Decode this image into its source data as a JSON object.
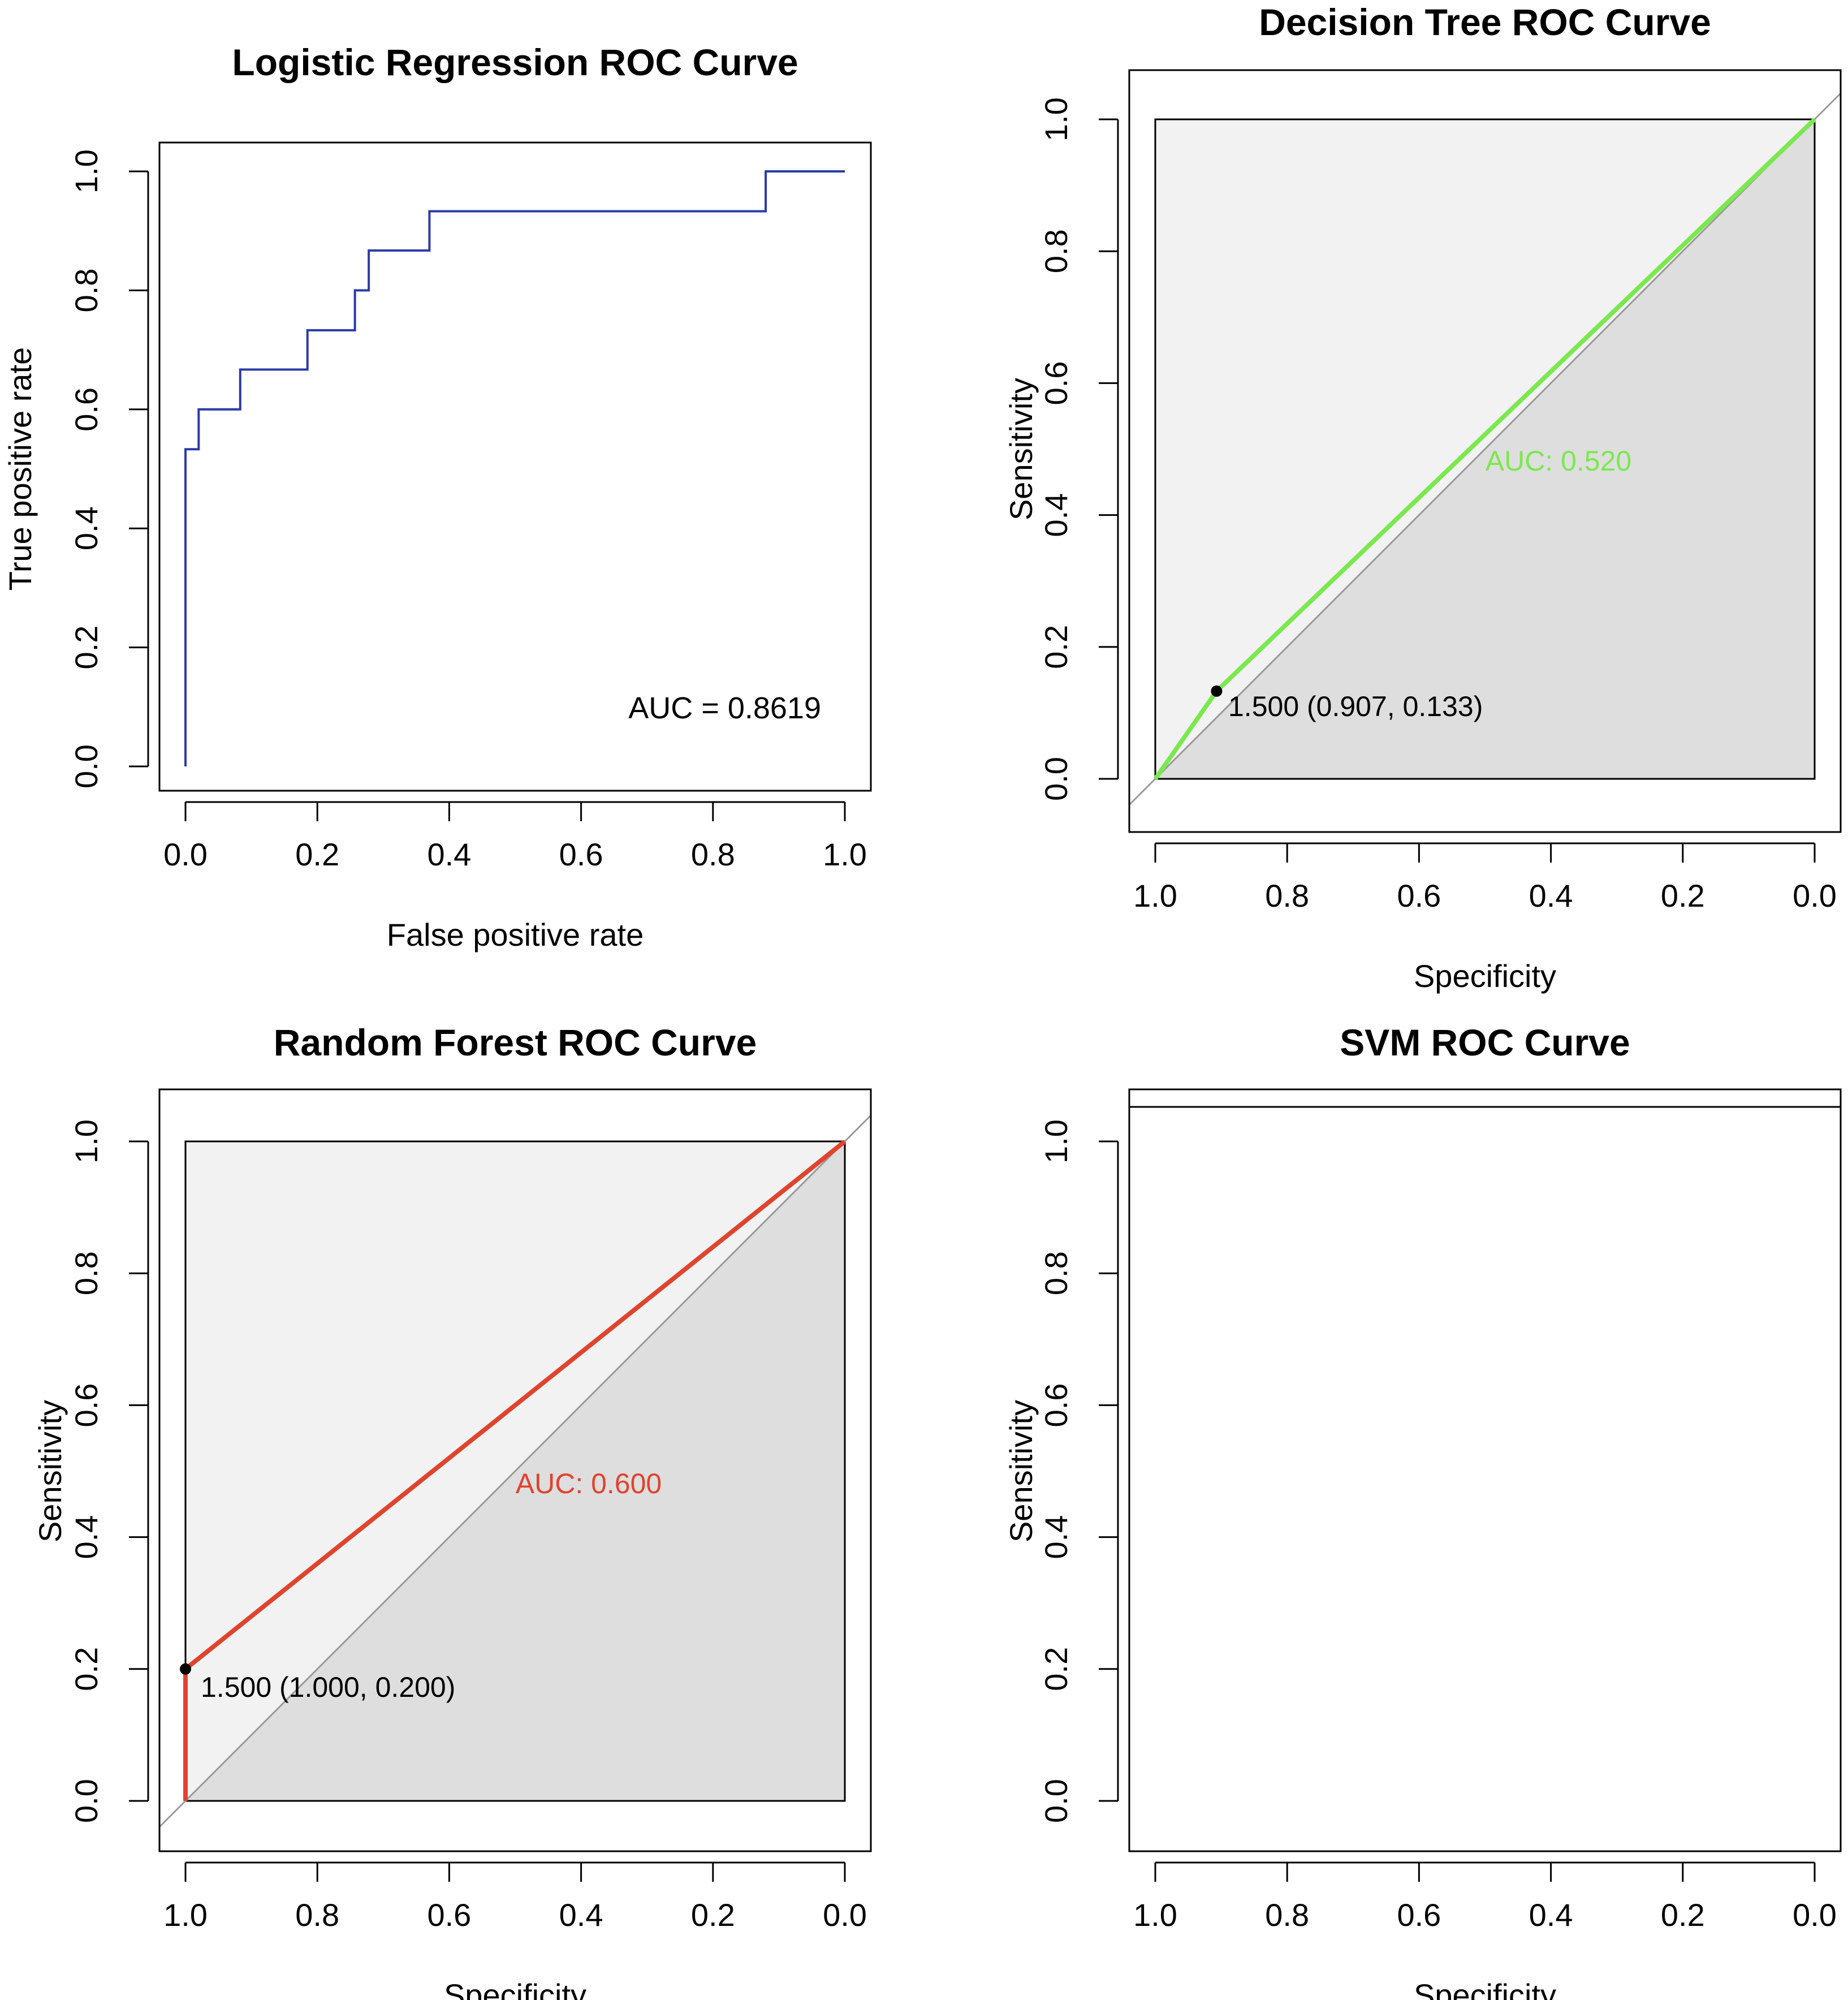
{
  "colors": {
    "logistic_curve": "#2b3aa8",
    "decision_tree_curve": "#7be84f",
    "random_forest_curve": "#e0432e",
    "frame": "#000000",
    "diagonal": "#9a9a9a",
    "shade_upper": "#f2f2f2",
    "shade_lower": "#dedede",
    "threshold_point": "#000000"
  },
  "chart_data": [
    {
      "id": "logistic",
      "type": "line",
      "title": "Logistic Regression ROC Curve",
      "xlabel": "False positive rate",
      "ylabel": "True positive rate",
      "xlim": [
        0,
        1
      ],
      "ylim": [
        0,
        1
      ],
      "x_ticks": [
        "0.0",
        "0.2",
        "0.4",
        "0.6",
        "0.8",
        "1.0"
      ],
      "y_ticks": [
        "0.0",
        "0.2",
        "0.4",
        "0.6",
        "0.8",
        "1.0"
      ],
      "auc_label": "AUC = 0.8619",
      "series": [
        {
          "name": "Logistic Regression",
          "x": [
            0,
            0,
            0.02,
            0.02,
            0.083,
            0.083,
            0.185,
            0.185,
            0.257,
            0.257,
            0.278,
            0.278,
            0.37,
            0.37,
            0.88,
            0.88,
            1.0
          ],
          "y": [
            0,
            0.533,
            0.533,
            0.6,
            0.6,
            0.667,
            0.667,
            0.733,
            0.733,
            0.8,
            0.8,
            0.867,
            0.867,
            0.933,
            0.933,
            1.0,
            1.0
          ]
        }
      ]
    },
    {
      "id": "decision_tree",
      "type": "line",
      "title": "Decision Tree ROC Curve",
      "xlabel": "Specificity",
      "ylabel": "Sensitivity",
      "xlim": [
        1,
        0
      ],
      "ylim": [
        0,
        1
      ],
      "x_ticks": [
        "1.0",
        "0.8",
        "0.6",
        "0.4",
        "0.2",
        "0.0"
      ],
      "y_ticks": [
        "0.0",
        "0.2",
        "0.4",
        "0.6",
        "0.8",
        "1.0"
      ],
      "auc_label": "AUC: 0.520",
      "threshold_label": "1.500 (0.907, 0.133)",
      "threshold_point": {
        "specificity": 0.907,
        "sensitivity": 0.133
      },
      "series": [
        {
          "name": "Decision Tree",
          "specificity": [
            1.0,
            0.907,
            0.0
          ],
          "sensitivity": [
            0.0,
            0.133,
            1.0
          ]
        }
      ]
    },
    {
      "id": "random_forest",
      "type": "line",
      "title": "Random Forest ROC Curve",
      "xlabel": "Specificity",
      "ylabel": "Sensitivity",
      "xlim": [
        1,
        0
      ],
      "ylim": [
        0,
        1
      ],
      "x_ticks": [
        "1.0",
        "0.8",
        "0.6",
        "0.4",
        "0.2",
        "0.0"
      ],
      "y_ticks": [
        "0.0",
        "0.2",
        "0.4",
        "0.6",
        "0.8",
        "1.0"
      ],
      "auc_label": "AUC: 0.600",
      "threshold_label": "1.500 (1.000, 0.200)",
      "threshold_point": {
        "specificity": 1.0,
        "sensitivity": 0.2
      },
      "series": [
        {
          "name": "Random Forest",
          "specificity": [
            1.0,
            1.0,
            0.0
          ],
          "sensitivity": [
            0.0,
            0.2,
            1.0
          ]
        }
      ]
    },
    {
      "id": "svm",
      "type": "line",
      "title": "SVM ROC Curve",
      "xlabel": "Specificity",
      "ylabel": "Sensitivity",
      "xlim": [
        1,
        0
      ],
      "ylim": [
        0,
        1
      ],
      "x_ticks": [
        "1.0",
        "0.8",
        "0.6",
        "0.4",
        "0.2",
        "0.0"
      ],
      "y_ticks": [
        "0.0",
        "0.2",
        "0.4",
        "0.6",
        "0.8",
        "1.0"
      ],
      "series": []
    }
  ]
}
